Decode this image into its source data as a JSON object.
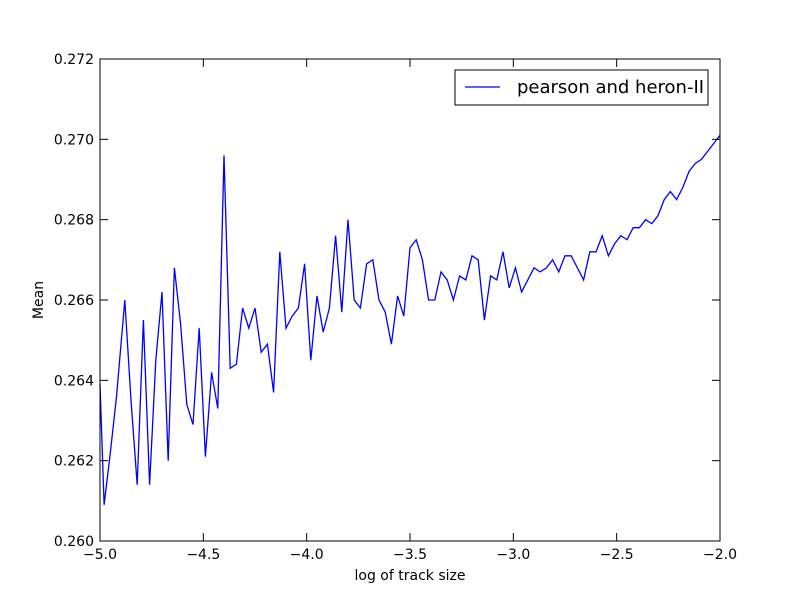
{
  "chart_data": {
    "type": "line",
    "title": "",
    "xlabel": "log of track size",
    "ylabel": "Mean",
    "xlim": [
      -5.0,
      -2.0
    ],
    "ylim": [
      0.26,
      0.272
    ],
    "x_ticks": [
      -5.0,
      -4.5,
      -4.0,
      -3.5,
      -3.0,
      -2.5,
      -2.0
    ],
    "x_tick_labels": [
      "−5.0",
      "−4.5",
      "−4.0",
      "−3.5",
      "−3.0",
      "−2.5",
      "−2.0"
    ],
    "y_ticks": [
      0.26,
      0.262,
      0.264,
      0.266,
      0.268,
      0.27,
      0.272
    ],
    "y_tick_labels": [
      "0.260",
      "0.262",
      "0.264",
      "0.266",
      "0.268",
      "0.270",
      "0.272"
    ],
    "grid": false,
    "legend_position": "top-right",
    "series": [
      {
        "name": "pearson and heron-II",
        "color": "#0000ff",
        "points": [
          [
            -5.0,
            0.2639
          ],
          [
            -4.98,
            0.2609
          ],
          [
            -4.95,
            0.2622
          ],
          [
            -4.92,
            0.2636
          ],
          [
            -4.88,
            0.266
          ],
          [
            -4.85,
            0.2635
          ],
          [
            -4.82,
            0.2614
          ],
          [
            -4.79,
            0.2655
          ],
          [
            -4.76,
            0.2614
          ],
          [
            -4.73,
            0.2645
          ],
          [
            -4.7,
            0.2662
          ],
          [
            -4.67,
            0.262
          ],
          [
            -4.64,
            0.2668
          ],
          [
            -4.61,
            0.2654
          ],
          [
            -4.58,
            0.2634
          ],
          [
            -4.55,
            0.2629
          ],
          [
            -4.52,
            0.2653
          ],
          [
            -4.49,
            0.2621
          ],
          [
            -4.46,
            0.2642
          ],
          [
            -4.43,
            0.2633
          ],
          [
            -4.4,
            0.2696
          ],
          [
            -4.37,
            0.2643
          ],
          [
            -4.34,
            0.2644
          ],
          [
            -4.31,
            0.2658
          ],
          [
            -4.28,
            0.2653
          ],
          [
            -4.25,
            0.2658
          ],
          [
            -4.22,
            0.2647
          ],
          [
            -4.19,
            0.2649
          ],
          [
            -4.16,
            0.2637
          ],
          [
            -4.13,
            0.2672
          ],
          [
            -4.1,
            0.2653
          ],
          [
            -4.07,
            0.2656
          ],
          [
            -4.04,
            0.2658
          ],
          [
            -4.01,
            0.2669
          ],
          [
            -3.98,
            0.2645
          ],
          [
            -3.95,
            0.2661
          ],
          [
            -3.92,
            0.2652
          ],
          [
            -3.89,
            0.2658
          ],
          [
            -3.86,
            0.2676
          ],
          [
            -3.83,
            0.2657
          ],
          [
            -3.8,
            0.268
          ],
          [
            -3.77,
            0.266
          ],
          [
            -3.74,
            0.2658
          ],
          [
            -3.71,
            0.2669
          ],
          [
            -3.68,
            0.267
          ],
          [
            -3.65,
            0.266
          ],
          [
            -3.62,
            0.2657
          ],
          [
            -3.59,
            0.2649
          ],
          [
            -3.56,
            0.2661
          ],
          [
            -3.53,
            0.2656
          ],
          [
            -3.5,
            0.2673
          ],
          [
            -3.47,
            0.2675
          ],
          [
            -3.44,
            0.267
          ],
          [
            -3.41,
            0.266
          ],
          [
            -3.38,
            0.266
          ],
          [
            -3.35,
            0.2667
          ],
          [
            -3.32,
            0.2665
          ],
          [
            -3.29,
            0.266
          ],
          [
            -3.26,
            0.2666
          ],
          [
            -3.23,
            0.2665
          ],
          [
            -3.2,
            0.2671
          ],
          [
            -3.17,
            0.267
          ],
          [
            -3.14,
            0.2655
          ],
          [
            -3.11,
            0.2666
          ],
          [
            -3.08,
            0.2665
          ],
          [
            -3.05,
            0.2672
          ],
          [
            -3.02,
            0.2663
          ],
          [
            -2.99,
            0.2668
          ],
          [
            -2.96,
            0.2662
          ],
          [
            -2.93,
            0.2665
          ],
          [
            -2.9,
            0.2668
          ],
          [
            -2.87,
            0.2667
          ],
          [
            -2.84,
            0.2668
          ],
          [
            -2.81,
            0.267
          ],
          [
            -2.78,
            0.2667
          ],
          [
            -2.75,
            0.2671
          ],
          [
            -2.72,
            0.2671
          ],
          [
            -2.69,
            0.2668
          ],
          [
            -2.66,
            0.2665
          ],
          [
            -2.63,
            0.2672
          ],
          [
            -2.6,
            0.2672
          ],
          [
            -2.57,
            0.2676
          ],
          [
            -2.54,
            0.2671
          ],
          [
            -2.51,
            0.2674
          ],
          [
            -2.48,
            0.2676
          ],
          [
            -2.45,
            0.2675
          ],
          [
            -2.42,
            0.2678
          ],
          [
            -2.39,
            0.2678
          ],
          [
            -2.36,
            0.268
          ],
          [
            -2.33,
            0.2679
          ],
          [
            -2.3,
            0.2681
          ],
          [
            -2.27,
            0.2685
          ],
          [
            -2.24,
            0.2687
          ],
          [
            -2.21,
            0.2685
          ],
          [
            -2.18,
            0.2688
          ],
          [
            -2.15,
            0.2692
          ],
          [
            -2.12,
            0.2694
          ],
          [
            -2.09,
            0.2695
          ],
          [
            -2.06,
            0.2697
          ],
          [
            -2.03,
            0.2699
          ],
          [
            -2.0,
            0.2701
          ]
        ]
      }
    ]
  }
}
